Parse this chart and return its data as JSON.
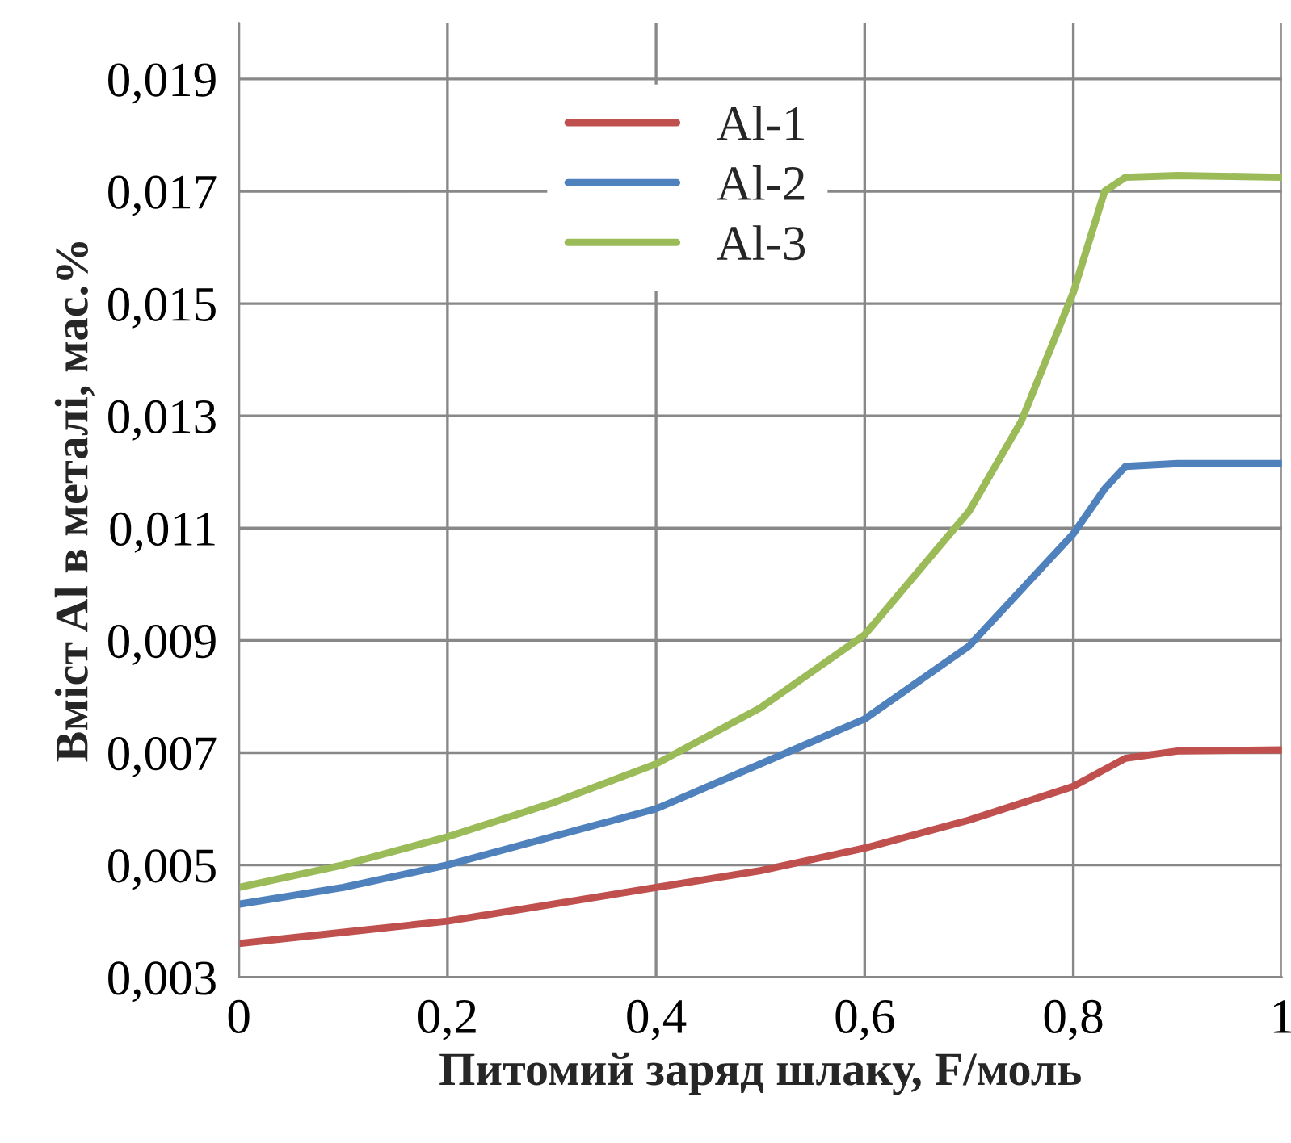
{
  "chart_data": {
    "type": "line",
    "xlabel": "Питомий заряд шлаку, F/моль",
    "ylabel": "Вміст Al в металі, мас.%",
    "xlim": [
      0,
      1
    ],
    "xticks": [
      0,
      {
        "value": 0.2,
        "label": "0,2"
      },
      {
        "value": 0.4,
        "label": "0,4"
      },
      {
        "value": 0.6,
        "label": "0,6"
      },
      {
        "value": 0.8,
        "label": "0,8"
      },
      1
    ],
    "ylim": [
      0.003,
      0.02
    ],
    "yticks": [
      {
        "value": 0.003,
        "label": "0,003"
      },
      {
        "value": 0.005,
        "label": "0,005"
      },
      {
        "value": 0.007,
        "label": "0,007"
      },
      {
        "value": 0.009,
        "label": "0,009"
      },
      {
        "value": 0.011,
        "label": "0,011"
      },
      {
        "value": 0.013,
        "label": "0,013"
      },
      {
        "value": 0.015,
        "label": "0,015"
      },
      {
        "value": 0.017,
        "label": "0,017"
      },
      {
        "value": 0.019,
        "label": "0,019"
      }
    ],
    "grid": true,
    "legend": "top",
    "marker": "none",
    "line_style": "solid",
    "series": [
      {
        "name": "Al-1",
        "color": "#c0504d",
        "x": [
          0,
          0.1,
          0.2,
          0.3,
          0.4,
          0.5,
          0.6,
          0.7,
          0.8,
          0.85,
          0.9,
          1
        ],
        "values": [
          0.0036,
          0.0038,
          0.004,
          0.0043,
          0.0046,
          0.0049,
          0.0053,
          0.0058,
          0.0064,
          0.0069,
          0.00703,
          0.00705
        ]
      },
      {
        "name": "Al-2",
        "color": "#4f81bd",
        "x": [
          0,
          0.1,
          0.2,
          0.3,
          0.4,
          0.5,
          0.6,
          0.7,
          0.8,
          0.83,
          0.85,
          0.9,
          1
        ],
        "values": [
          0.0043,
          0.0046,
          0.005,
          0.0055,
          0.006,
          0.0068,
          0.0076,
          0.0089,
          0.0109,
          0.0117,
          0.0121,
          0.01215,
          0.01215
        ]
      },
      {
        "name": "Al-3",
        "color": "#9bbb59",
        "x": [
          0,
          0.1,
          0.2,
          0.3,
          0.4,
          0.5,
          0.6,
          0.7,
          0.75,
          0.8,
          0.83,
          0.85,
          0.9,
          1
        ],
        "values": [
          0.0046,
          0.005,
          0.0055,
          0.0061,
          0.0068,
          0.0078,
          0.0091,
          0.0113,
          0.0129,
          0.0152,
          0.017,
          0.01725,
          0.01728,
          0.01725
        ]
      }
    ]
  }
}
